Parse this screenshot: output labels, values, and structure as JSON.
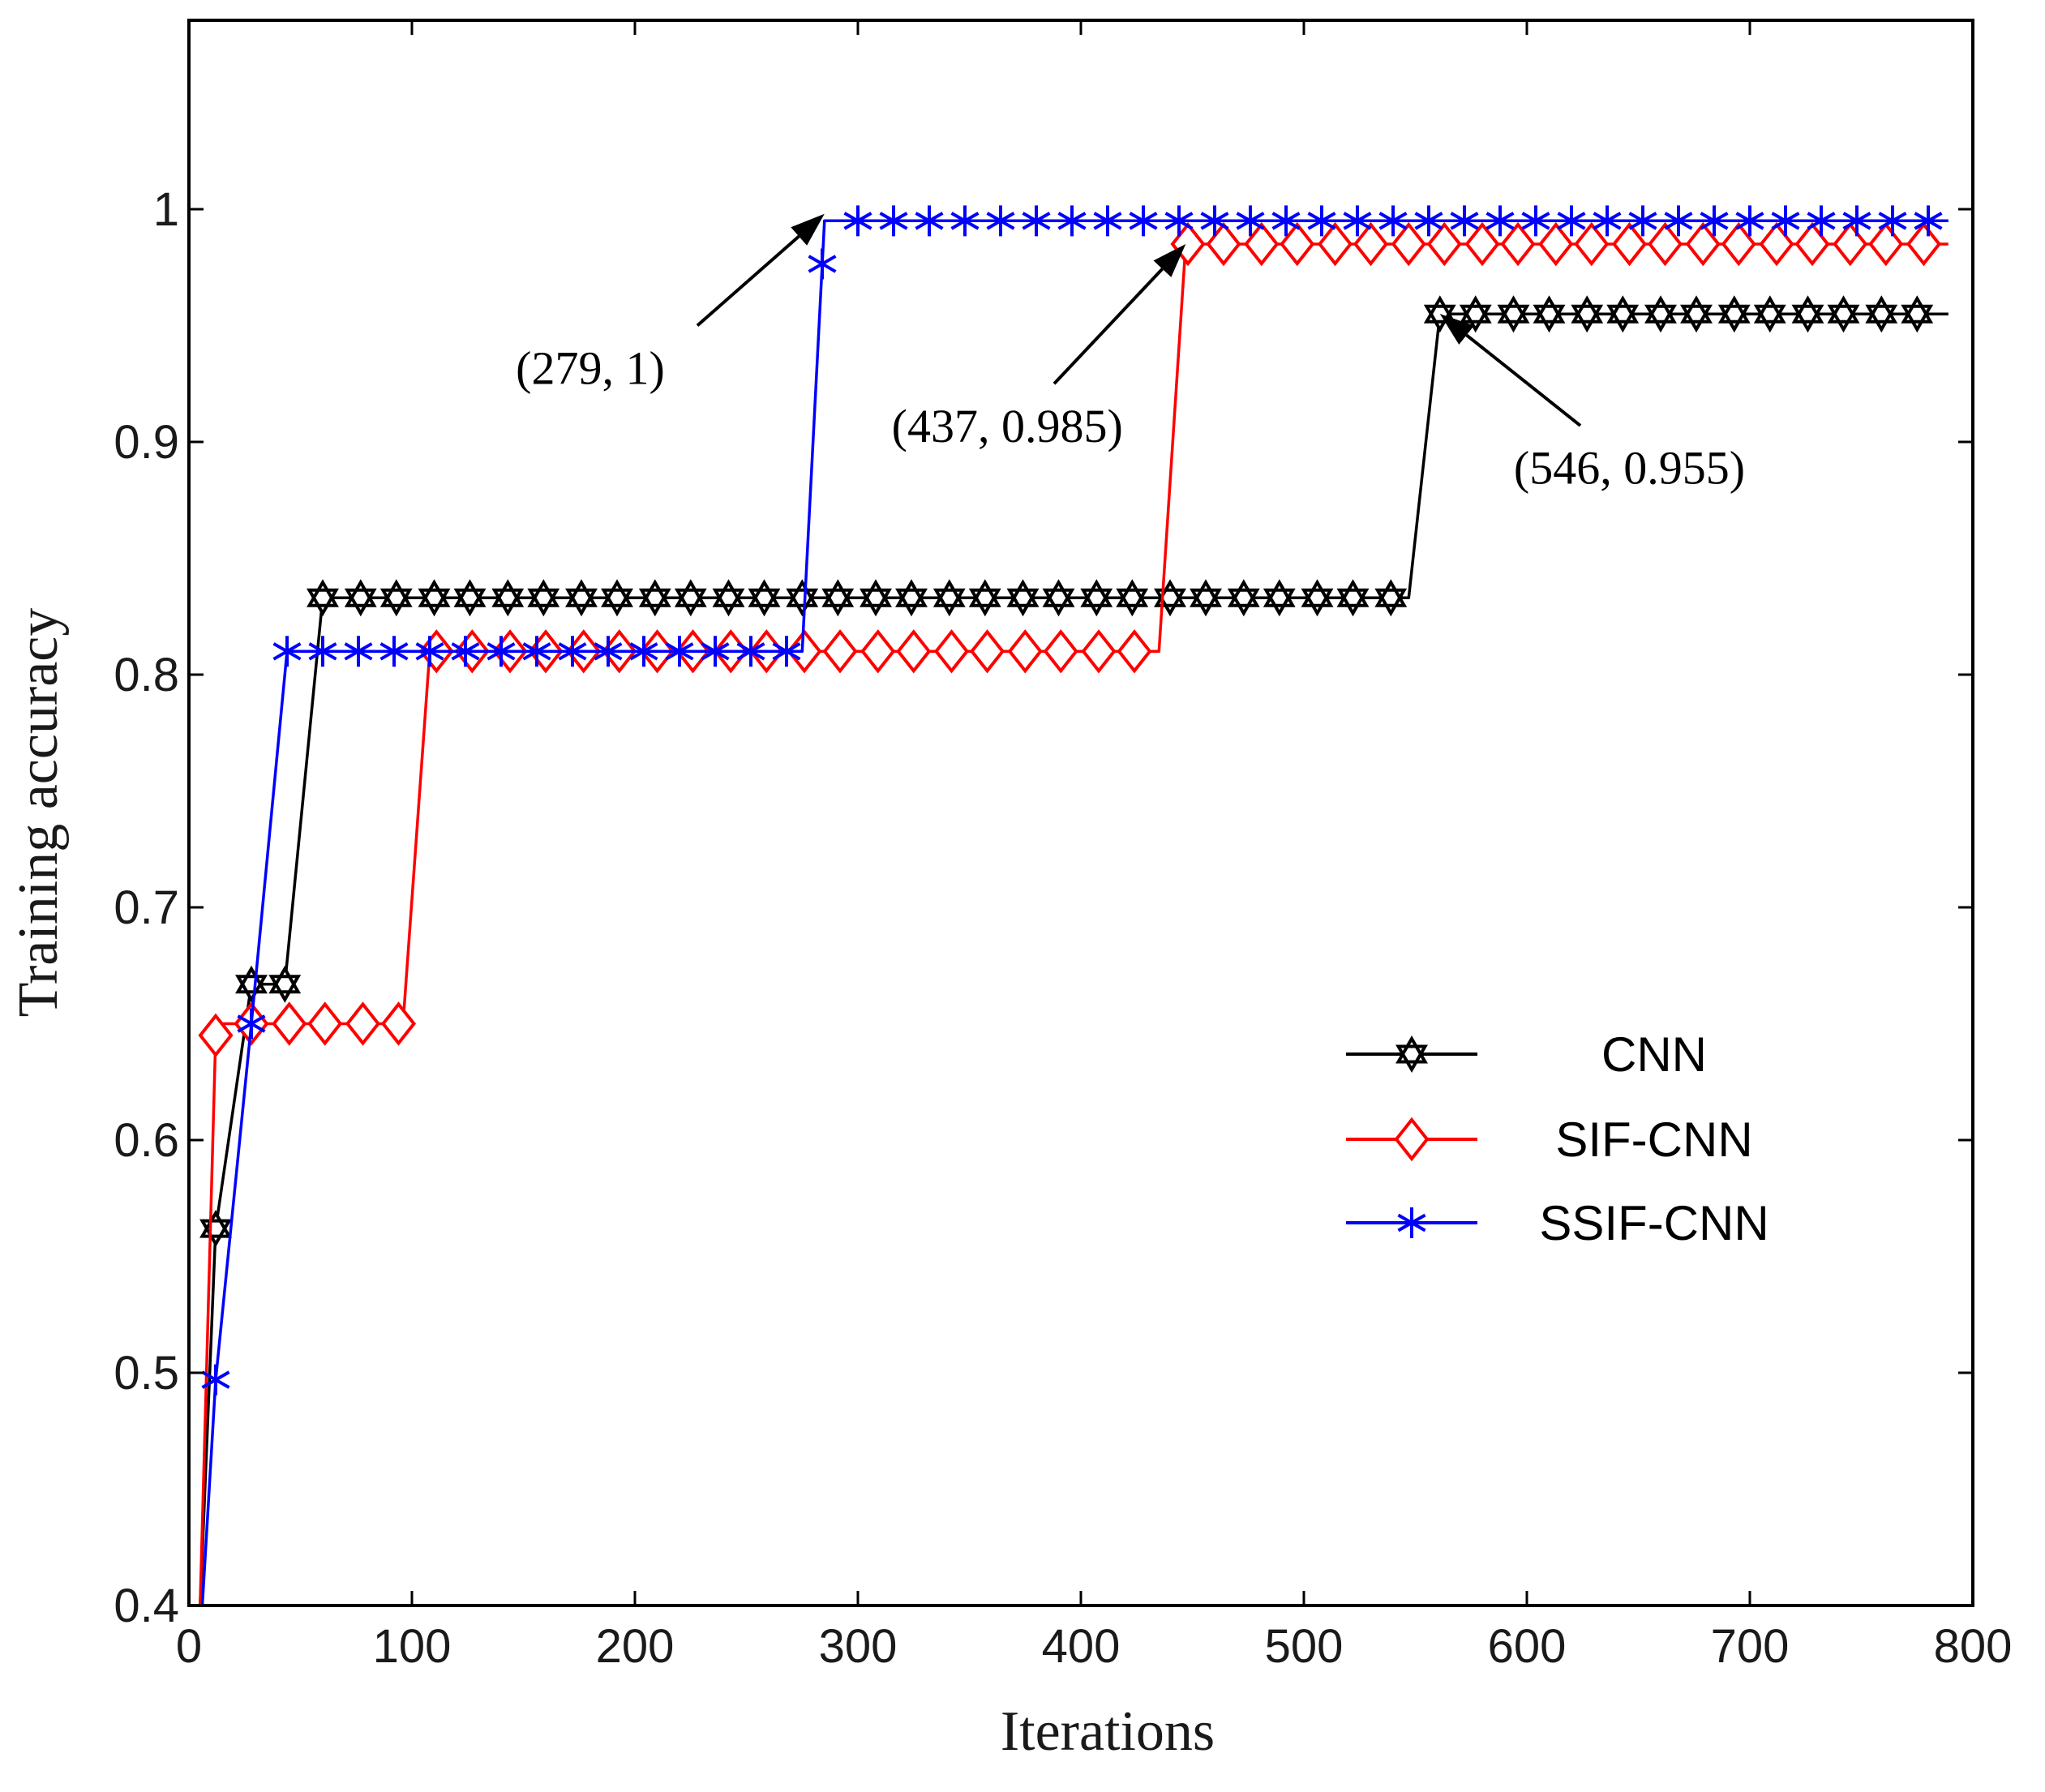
{
  "chart_data": {
    "type": "line",
    "title": "",
    "xlabel": "Iterations",
    "ylabel": "Training accuracy",
    "xlim": [
      0,
      800
    ],
    "ylim": [
      0.4,
      1.07
    ],
    "xticks": [
      0,
      100,
      200,
      300,
      400,
      500,
      600,
      700,
      800
    ],
    "yticks": [
      0.4,
      0.5,
      0.6,
      0.7,
      0.8,
      0.9,
      1
    ],
    "xtick_labels": [
      "0",
      "100",
      "200",
      "300",
      "400",
      "500",
      "600",
      "700",
      "800"
    ],
    "ytick_labels": [
      "0.4",
      "0.5",
      "0.6",
      "0.7",
      "0.8",
      "0.9",
      "1"
    ],
    "grid": false,
    "legend_position": "center-right",
    "series": [
      {
        "name": "CNN",
        "color": "#000000",
        "marker": "hexagram",
        "x": [
          5,
          12,
          28,
          43,
          60,
          74,
          547,
          561,
          789
        ],
        "y": [
          0.4,
          0.562,
          0.667,
          0.667,
          0.833,
          0.833,
          0.833,
          0.955,
          0.955
        ],
        "marker_x": [
          12,
          28,
          43,
          60,
          77,
          93,
          110,
          126,
          143,
          159,
          176,
          192,
          209,
          225,
          242,
          258,
          275,
          291,
          308,
          324,
          341,
          357,
          374,
          390,
          407,
          423,
          440,
          456,
          473,
          489,
          506,
          522,
          539,
          561,
          577,
          594,
          610,
          627,
          643,
          660,
          676,
          693,
          709,
          726,
          742,
          759,
          775
        ]
      },
      {
        "name": "SIF-CNN",
        "color": "#ff0000",
        "marker": "diamond",
        "x": [
          5,
          12,
          15,
          96,
          108,
          435,
          447,
          789
        ],
        "y": [
          0.4,
          0.645,
          0.65,
          0.65,
          0.81,
          0.81,
          0.985,
          0.985
        ],
        "marker_x": [
          12,
          28,
          45,
          61,
          78,
          94,
          111,
          127,
          144,
          160,
          177,
          193,
          210,
          226,
          243,
          259,
          276,
          292,
          309,
          325,
          342,
          358,
          375,
          391,
          408,
          424,
          448,
          464,
          481,
          497,
          514,
          530,
          547,
          563,
          580,
          596,
          613,
          629,
          646,
          662,
          679,
          695,
          712,
          728,
          745,
          761,
          778
        ]
      },
      {
        "name": "SSIF-CNN",
        "color": "#0000ff",
        "marker": "asterisk",
        "x": [
          6,
          12,
          28,
          44,
          275,
          285,
          789
        ],
        "y": [
          0.4,
          0.497,
          0.65,
          0.81,
          0.81,
          0.995,
          0.995
        ],
        "marker_x": [
          12,
          28,
          44,
          60,
          76,
          92,
          108,
          124,
          140,
          156,
          172,
          188,
          204,
          220,
          236,
          252,
          268,
          284,
          300,
          316,
          332,
          348,
          364,
          380,
          396,
          412,
          428,
          444,
          460,
          476,
          492,
          508,
          524,
          540,
          556,
          572,
          588,
          604,
          620,
          636,
          652,
          668,
          684,
          700,
          716,
          732,
          748,
          764,
          780
        ]
      }
    ],
    "annotations": [
      {
        "text": "(279, 1)",
        "target_x": 285,
        "target_y": 0.998,
        "text_x": 180,
        "text_y": 0.925,
        "tail_x": 228,
        "tail_y": 0.95
      },
      {
        "text": "(437, 0.985)",
        "target_x": 447,
        "target_y": 0.985,
        "text_x": 367,
        "text_y": 0.9,
        "tail_x": 388,
        "tail_y": 0.925
      },
      {
        "text": "(546, 0.955)",
        "target_x": 561,
        "target_y": 0.955,
        "text_x": 646,
        "text_y": 0.882,
        "tail_x": 624,
        "tail_y": 0.907
      }
    ]
  }
}
